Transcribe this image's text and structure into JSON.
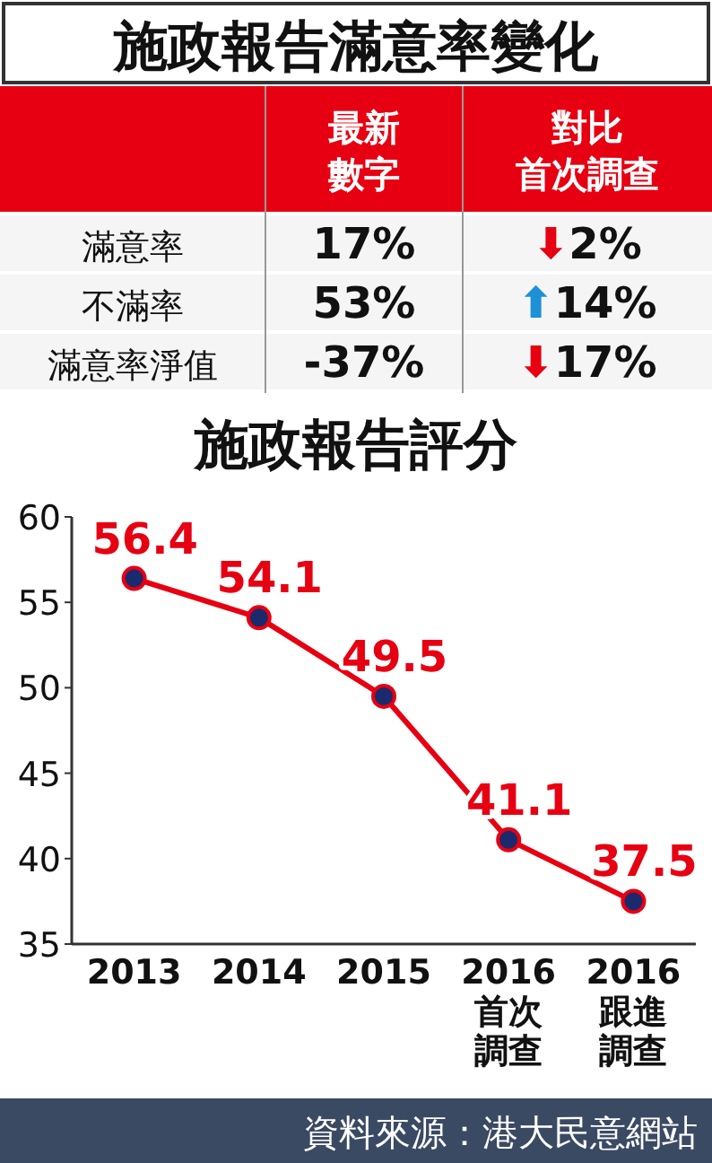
{
  "chart_data": [
    {
      "type": "other",
      "title": "施政報告滿意率變化",
      "annotations": [
        "最新數字",
        "對比首次調查",
        "滿意率",
        "17%",
        "⬇2%",
        "不滿率",
        "53%",
        "⬆14%",
        "滿意率淨值",
        "-37%",
        "⬇17%"
      ]
    },
    {
      "type": "line",
      "title": "施政報告評分",
      "categories": [
        "2013",
        "2014",
        "2015",
        "2016首次調查",
        "2016跟進調查"
      ],
      "series": [
        {
          "color": "#e60012",
          "values": [
            56.4,
            54.1,
            49.5,
            41.1,
            37.5
          ]
        }
      ],
      "ylim": [
        35,
        60
      ],
      "yticks": [
        35,
        40,
        45,
        50,
        55,
        60
      ],
      "marker": "circle",
      "data_labels": true,
      "grid": false,
      "annotations": [
        "資料來源：港大民意網站"
      ]
    }
  ]
}
